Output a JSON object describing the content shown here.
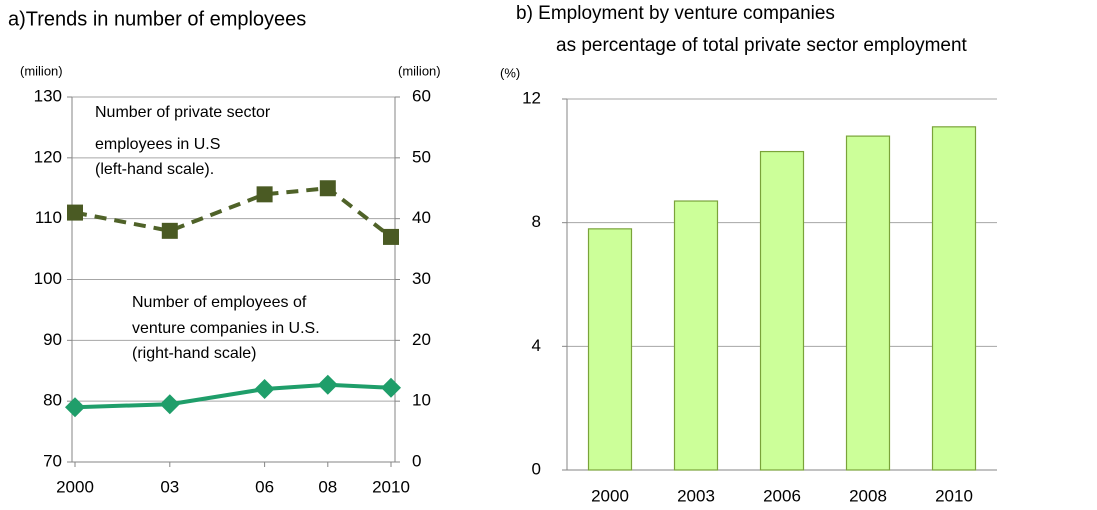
{
  "chart_data": [
    {
      "type": "line",
      "title": "a)Trends in number of employees",
      "y_unit": "(milion)",
      "y2_unit": "(milion)",
      "x": [
        2000,
        2003,
        2006,
        2008,
        2010
      ],
      "xlim": [
        2000,
        2010
      ],
      "xticks": [
        2000,
        {
          "value": 2003,
          "label": "03"
        },
        {
          "value": 2006,
          "label": "06"
        },
        {
          "value": 2008,
          "label": "08"
        },
        2010
      ],
      "ylim": [
        70,
        130
      ],
      "yticks": [
        70,
        80,
        90,
        100,
        110,
        120,
        130
      ],
      "y2lim": [
        0,
        60
      ],
      "y2ticks": [
        0,
        10,
        20,
        30,
        40,
        50,
        60
      ],
      "grid": true,
      "annotations": [
        "Number of private sector",
        "employees in U.S",
        "(left-hand scale).",
        "Number of employees of",
        "venture companies in U.S.",
        "(right-hand scale)"
      ],
      "series": [
        {
          "name": "Number of private sector employees in U.S (left-hand scale).",
          "color": "#4f6228",
          "values": [
            111,
            108,
            114,
            115,
            107
          ]
        },
        {
          "name": "Number of employees of venture companies in U.S. (right-hand scale)",
          "color": "#1f9e6a",
          "axis": "y2",
          "values": [
            9,
            9.5,
            12,
            12.7,
            12.2
          ]
        }
      ]
    },
    {
      "type": "bar",
      "title": "b) Employment by venture companies",
      "subtitle": "as percentage of total private sector employment",
      "y_unit": "(%)",
      "categories": [
        "2000",
        "2003",
        "2006",
        "2008",
        "2010"
      ],
      "values": [
        7.8,
        8.7,
        10.3,
        10.8,
        11.1
      ],
      "color": "#ccff99",
      "ylim": [
        0,
        12
      ],
      "yticks": [
        0,
        4,
        8,
        12
      ],
      "grid": true
    }
  ]
}
